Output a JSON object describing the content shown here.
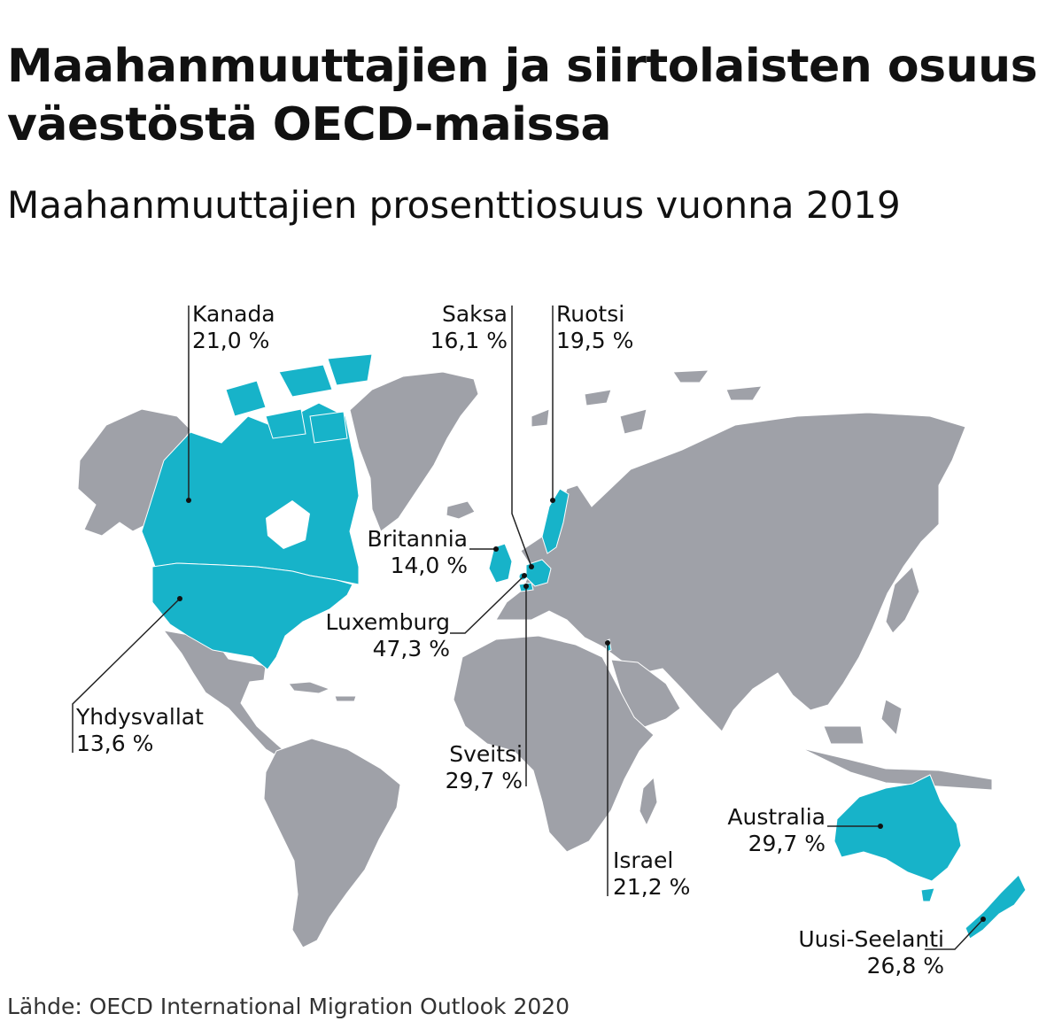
{
  "title": "Maahanmuuttajien ja siirtolaisten osuus väestöstä OECD-maissa",
  "subtitle": "Maahanmuuttajien prosenttiosuus vuonna 2019",
  "source": "Lähde: OECD International Migration Outlook 2020",
  "colors": {
    "highlight": "#17b3c9",
    "land": "#9fa1a8",
    "border": "#ffffff",
    "leader": "#222222"
  },
  "countries": [
    {
      "id": "kanada",
      "name": "Kanada",
      "value": "21,0 %"
    },
    {
      "id": "yhdysvallat",
      "name": "Yhdysvallat",
      "value": "13,6 %"
    },
    {
      "id": "saksa",
      "name": "Saksa",
      "value": "16,1 %"
    },
    {
      "id": "ruotsi",
      "name": "Ruotsi",
      "value": "19,5 %"
    },
    {
      "id": "britannia",
      "name": "Britannia",
      "value": "14,0 %"
    },
    {
      "id": "luxemburg",
      "name": "Luxemburg",
      "value": "47,3 %"
    },
    {
      "id": "sveitsi",
      "name": "Sveitsi",
      "value": "29,7 %"
    },
    {
      "id": "israel",
      "name": "Israel",
      "value": "21,2 %"
    },
    {
      "id": "australia",
      "name": "Australia",
      "value": "29,7 %"
    },
    {
      "id": "uusi-seelanti",
      "name": "Uusi-Seelanti",
      "value": "26,8 %"
    }
  ]
}
